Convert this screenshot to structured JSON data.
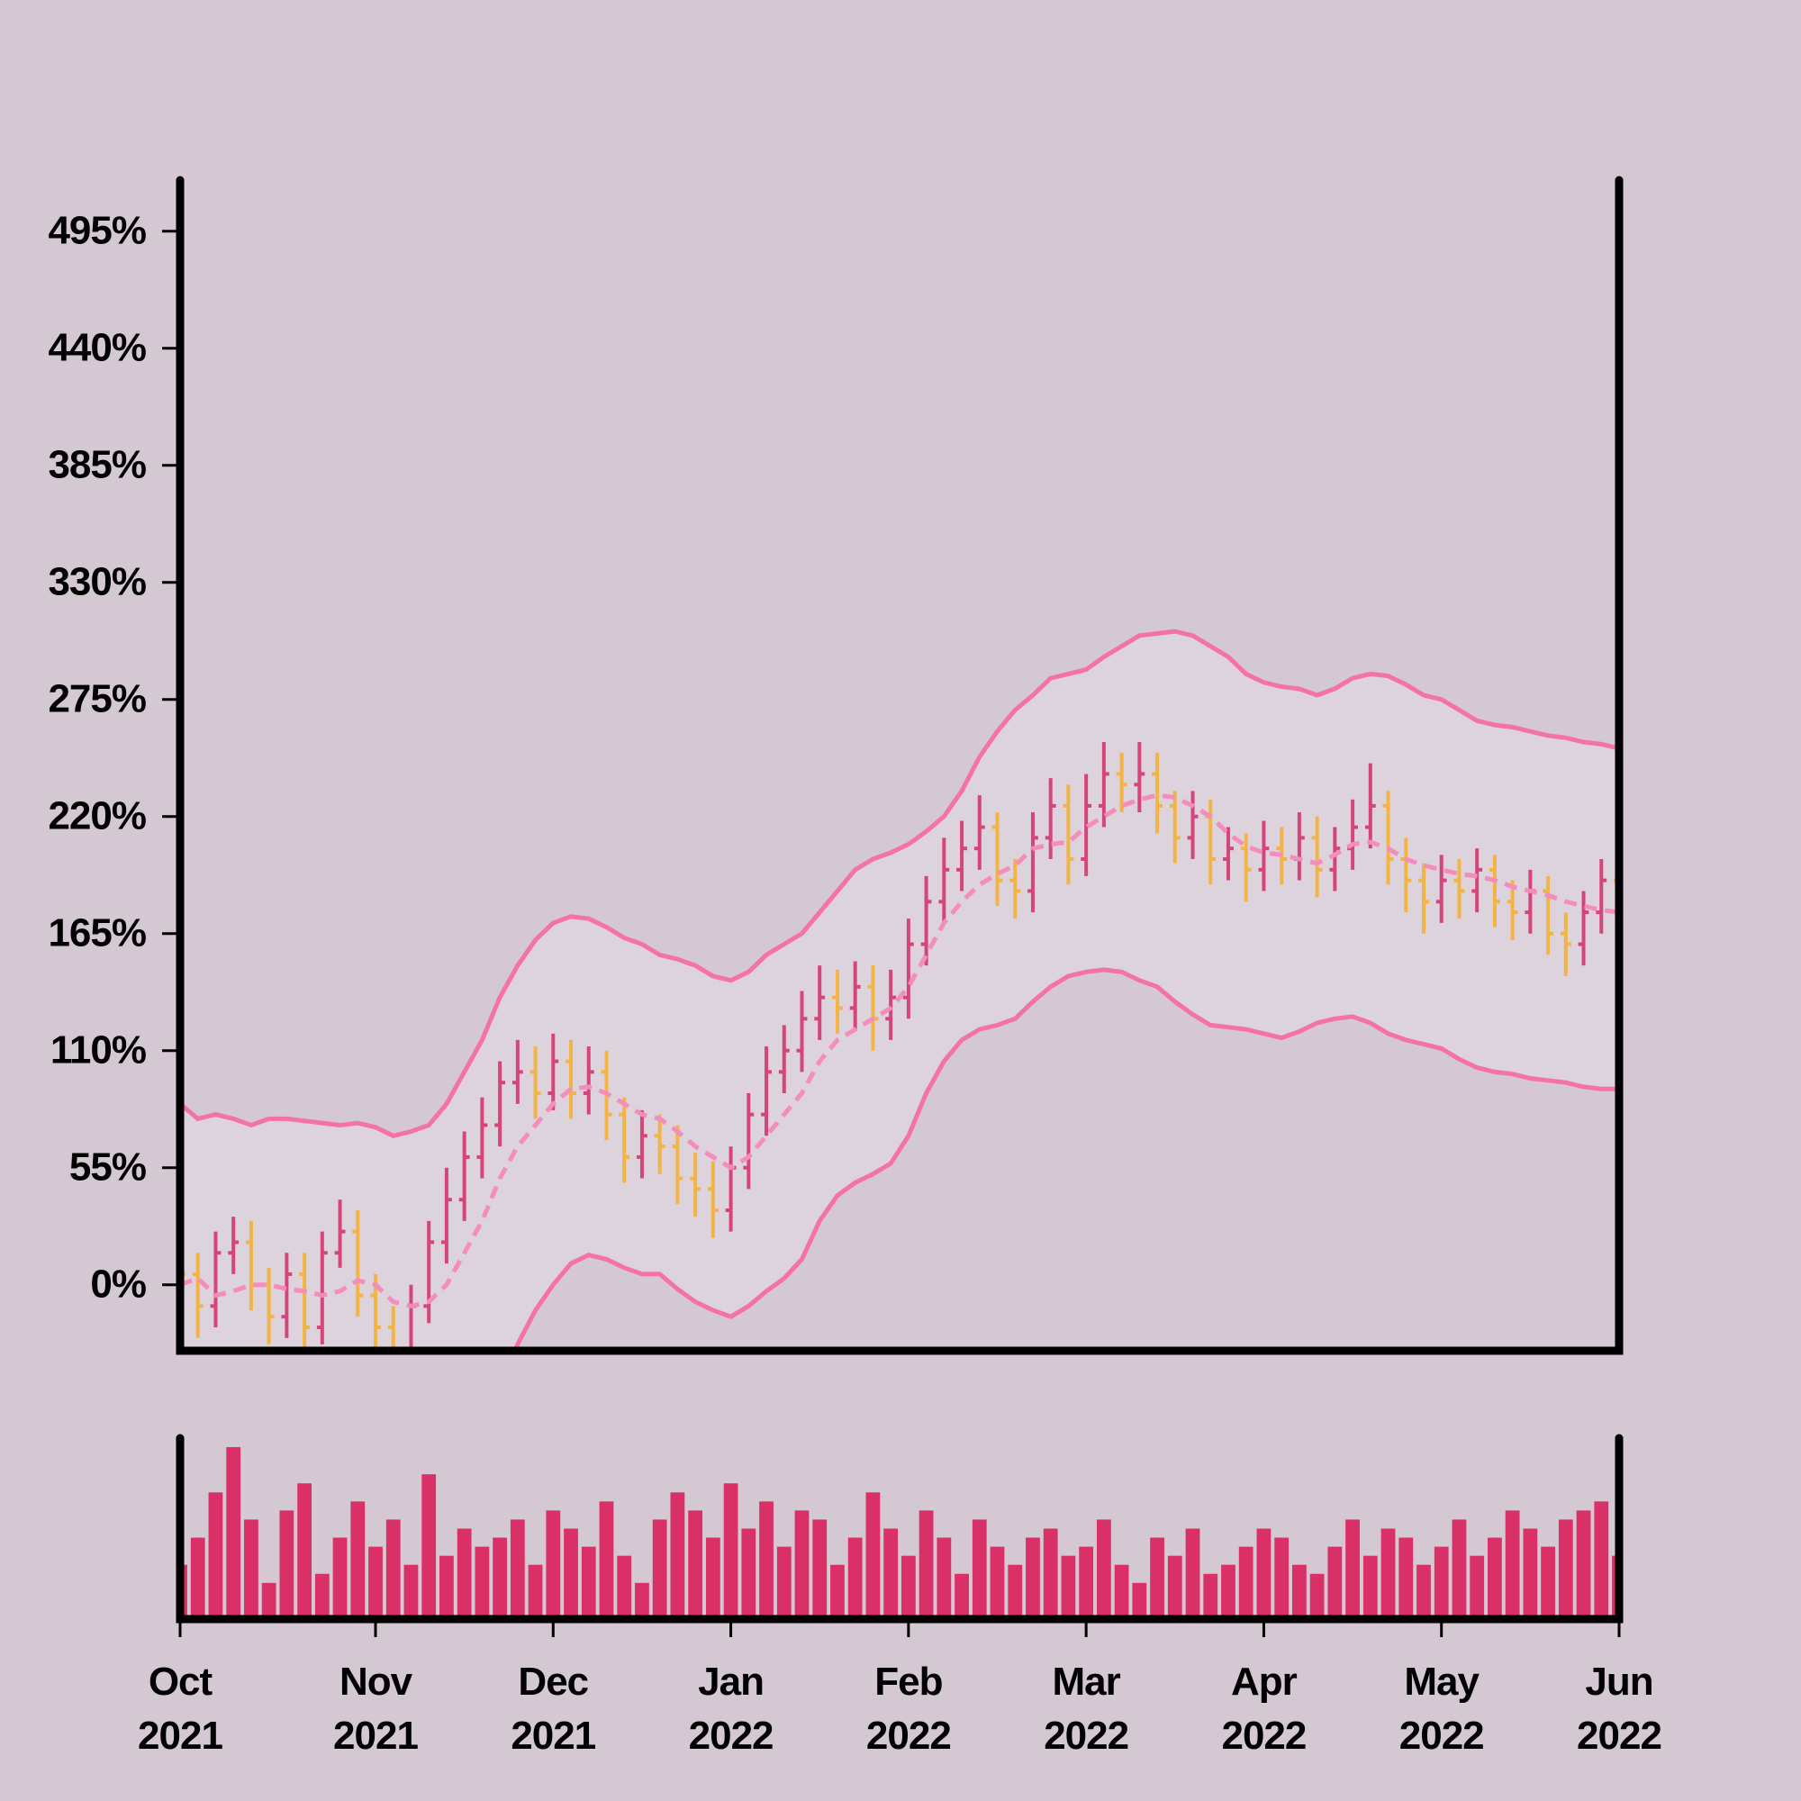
{
  "chart_data": [
    {
      "type": "ohlc",
      "x": [
        "2021-10",
        "2021-10",
        "2021-10",
        "2021-10",
        "2021-10",
        "2021-10",
        "2021-10",
        "2021-10",
        "2021-10",
        "2021-10",
        "2021-10",
        "2021-11",
        "2021-11",
        "2021-11",
        "2021-11",
        "2021-11",
        "2021-11",
        "2021-11",
        "2021-11",
        "2021-11",
        "2021-11",
        "2021-12",
        "2021-12",
        "2021-12",
        "2021-12",
        "2021-12",
        "2021-12",
        "2021-12",
        "2021-12",
        "2021-12",
        "2021-12",
        "2022-01",
        "2022-01",
        "2022-01",
        "2022-01",
        "2022-01",
        "2022-01",
        "2022-01",
        "2022-01",
        "2022-01",
        "2022-01",
        "2022-02",
        "2022-02",
        "2022-02",
        "2022-02",
        "2022-02",
        "2022-02",
        "2022-02",
        "2022-02",
        "2022-02",
        "2022-02",
        "2022-03",
        "2022-03",
        "2022-03",
        "2022-03",
        "2022-03",
        "2022-03",
        "2022-03",
        "2022-03",
        "2022-03",
        "2022-03",
        "2022-04",
        "2022-04",
        "2022-04",
        "2022-04",
        "2022-04",
        "2022-04",
        "2022-04",
        "2022-04",
        "2022-04",
        "2022-04",
        "2022-05",
        "2022-05",
        "2022-05",
        "2022-05",
        "2022-05",
        "2022-05",
        "2022-05",
        "2022-05",
        "2022-05",
        "2022-05",
        "2022-06"
      ],
      "open": [
        15,
        5,
        -10,
        15,
        20,
        0,
        -15,
        5,
        -20,
        15,
        25,
        -5,
        -20,
        -30,
        -10,
        20,
        40,
        60,
        75,
        95,
        100,
        90,
        105,
        90,
        100,
        80,
        60,
        70,
        65,
        50,
        45,
        35,
        55,
        80,
        100,
        110,
        125,
        135,
        130,
        140,
        125,
        135,
        160,
        180,
        195,
        205,
        215,
        190,
        185,
        210,
        225,
        200,
        225,
        240,
        235,
        240,
        225,
        210,
        220,
        200,
        205,
        195,
        205,
        200,
        210,
        195,
        205,
        215,
        225,
        200,
        190,
        180,
        190,
        185,
        195,
        180,
        175,
        185,
        165,
        160,
        175,
        190
      ],
      "high": [
        28,
        15,
        25,
        32,
        30,
        8,
        15,
        15,
        25,
        40,
        35,
        5,
        -10,
        0,
        30,
        55,
        72,
        88,
        105,
        115,
        112,
        118,
        115,
        112,
        110,
        88,
        82,
        80,
        75,
        62,
        58,
        65,
        90,
        112,
        122,
        138,
        150,
        148,
        152,
        150,
        148,
        172,
        192,
        210,
        218,
        230,
        222,
        200,
        222,
        238,
        235,
        240,
        255,
        250,
        255,
        250,
        232,
        232,
        228,
        215,
        212,
        218,
        215,
        222,
        220,
        215,
        228,
        245,
        232,
        210,
        198,
        202,
        200,
        205,
        202,
        190,
        195,
        192,
        175,
        185,
        200,
        198
      ],
      "low": [
        -8,
        -25,
        -20,
        5,
        -12,
        -28,
        -25,
        -32,
        -28,
        8,
        -15,
        -30,
        -40,
        -38,
        -18,
        10,
        30,
        50,
        65,
        85,
        78,
        82,
        78,
        80,
        68,
        48,
        50,
        52,
        38,
        32,
        22,
        25,
        45,
        70,
        90,
        100,
        115,
        118,
        120,
        110,
        115,
        125,
        150,
        170,
        185,
        195,
        178,
        172,
        175,
        200,
        188,
        192,
        215,
        222,
        222,
        212,
        198,
        200,
        188,
        190,
        180,
        185,
        188,
        190,
        182,
        185,
        195,
        205,
        188,
        175,
        165,
        170,
        172,
        175,
        168,
        162,
        165,
        155,
        145,
        150,
        165,
        158
      ],
      "close": [
        5,
        -10,
        15,
        20,
        0,
        -15,
        5,
        -20,
        15,
        25,
        -5,
        -20,
        -30,
        -10,
        20,
        40,
        60,
        75,
        95,
        100,
        90,
        105,
        90,
        100,
        80,
        60,
        70,
        65,
        50,
        45,
        35,
        55,
        80,
        100,
        110,
        125,
        135,
        130,
        140,
        125,
        135,
        160,
        180,
        195,
        205,
        215,
        190,
        185,
        210,
        225,
        200,
        225,
        240,
        235,
        240,
        225,
        210,
        220,
        200,
        205,
        195,
        205,
        200,
        210,
        195,
        205,
        215,
        225,
        200,
        190,
        180,
        190,
        185,
        195,
        180,
        175,
        185,
        165,
        160,
        175,
        190,
        170
      ],
      "upper": [
        85,
        78,
        80,
        78,
        75,
        78,
        78,
        77,
        76,
        75,
        76,
        74,
        70,
        72,
        75,
        85,
        100,
        115,
        135,
        150,
        162,
        170,
        173,
        172,
        168,
        163,
        160,
        155,
        153,
        150,
        145,
        143,
        147,
        155,
        160,
        165,
        175,
        185,
        195,
        200,
        203,
        207,
        213,
        220,
        232,
        248,
        260,
        270,
        277,
        285,
        287,
        289,
        295,
        300,
        305,
        306,
        307,
        305,
        300,
        295,
        287,
        283,
        281,
        280,
        277,
        280,
        285,
        287,
        286,
        282,
        277,
        275,
        270,
        265,
        263,
        262,
        260,
        258,
        257,
        255,
        254,
        252
      ],
      "middle": [
        0,
        3,
        -5,
        -3,
        0,
        0,
        -2,
        -3,
        -5,
        -3,
        2,
        0,
        -8,
        -10,
        -8,
        0,
        15,
        30,
        50,
        65,
        75,
        85,
        92,
        93,
        90,
        85,
        80,
        78,
        72,
        65,
        60,
        55,
        60,
        70,
        80,
        90,
        105,
        115,
        120,
        125,
        130,
        140,
        155,
        170,
        180,
        188,
        193,
        197,
        205,
        207,
        208,
        215,
        220,
        225,
        228,
        230,
        229,
        225,
        220,
        212,
        206,
        203,
        202,
        200,
        198,
        202,
        207,
        208,
        205,
        200,
        197,
        195,
        193,
        192,
        190,
        187,
        185,
        183,
        180,
        178,
        176,
        175
      ],
      "lower": [
        -100,
        -105,
        -108,
        -110,
        -108,
        -106,
        -108,
        -110,
        -112,
        -110,
        -106,
        -108,
        -112,
        -115,
        -113,
        -110,
        -90,
        -70,
        -50,
        -28,
        -12,
        0,
        10,
        14,
        12,
        8,
        5,
        5,
        -2,
        -8,
        -12,
        -15,
        -10,
        -3,
        3,
        12,
        30,
        42,
        48,
        52,
        57,
        70,
        90,
        105,
        115,
        120,
        122,
        125,
        133,
        140,
        145,
        147,
        148,
        147,
        143,
        140,
        133,
        127,
        122,
        121,
        120,
        118,
        116,
        119,
        123,
        125,
        126,
        123,
        118,
        115,
        113,
        111,
        106,
        102,
        100,
        99,
        97,
        96,
        95,
        93,
        92,
        92
      ],
      "up_color": "#d6457a",
      "down_color": "#f3b445",
      "band_color": "#f472a8",
      "middle_color": "#f48cbc",
      "fill_color": "#dcd3dc",
      "ylim": [
        -31,
        519
      ],
      "yticks": [
        {
          "value": 0,
          "label": "0%"
        },
        {
          "value": 55,
          "label": "55%"
        },
        {
          "value": 110,
          "label": "110%"
        },
        {
          "value": 165,
          "label": "165%"
        },
        {
          "value": 220,
          "label": "220%"
        },
        {
          "value": 275,
          "label": "275%"
        },
        {
          "value": 330,
          "label": "330%"
        },
        {
          "value": 385,
          "label": "385%"
        },
        {
          "value": 440,
          "label": "440%"
        },
        {
          "value": 495,
          "label": "495%"
        }
      ]
    },
    {
      "type": "bar",
      "x": [
        "2021-10",
        "2021-10",
        "2021-10",
        "2021-10",
        "2021-10",
        "2021-10",
        "2021-10",
        "2021-10",
        "2021-10",
        "2021-10",
        "2021-10",
        "2021-11",
        "2021-11",
        "2021-11",
        "2021-11",
        "2021-11",
        "2021-11",
        "2021-11",
        "2021-11",
        "2021-11",
        "2021-11",
        "2021-12",
        "2021-12",
        "2021-12",
        "2021-12",
        "2021-12",
        "2021-12",
        "2021-12",
        "2021-12",
        "2021-12",
        "2021-12",
        "2022-01",
        "2022-01",
        "2022-01",
        "2022-01",
        "2022-01",
        "2022-01",
        "2022-01",
        "2022-01",
        "2022-01",
        "2022-01",
        "2022-02",
        "2022-02",
        "2022-02",
        "2022-02",
        "2022-02",
        "2022-02",
        "2022-02",
        "2022-02",
        "2022-02",
        "2022-02",
        "2022-03",
        "2022-03",
        "2022-03",
        "2022-03",
        "2022-03",
        "2022-03",
        "2022-03",
        "2022-03",
        "2022-03",
        "2022-03",
        "2022-04",
        "2022-04",
        "2022-04",
        "2022-04",
        "2022-04",
        "2022-04",
        "2022-04",
        "2022-04",
        "2022-04",
        "2022-04",
        "2022-05",
        "2022-05",
        "2022-05",
        "2022-05",
        "2022-05",
        "2022-05",
        "2022-05",
        "2022-05",
        "2022-05",
        "2022-05",
        "2022-06"
      ],
      "values": [
        30,
        45,
        70,
        95,
        55,
        20,
        60,
        75,
        25,
        45,
        65,
        40,
        55,
        30,
        80,
        35,
        50,
        40,
        45,
        55,
        30,
        60,
        50,
        40,
        65,
        35,
        20,
        55,
        70,
        60,
        45,
        75,
        50,
        65,
        40,
        60,
        55,
        30,
        45,
        70,
        50,
        35,
        60,
        45,
        25,
        55,
        40,
        30,
        45,
        50,
        35,
        40,
        55,
        30,
        20,
        45,
        35,
        50,
        25,
        30,
        40,
        50,
        45,
        30,
        25,
        40,
        55,
        35,
        50,
        45,
        30,
        40,
        55,
        35,
        45,
        60,
        50,
        40,
        55,
        60,
        65,
        35
      ],
      "color": "#d93068",
      "ylim": [
        0,
        100
      ],
      "xticks": [
        {
          "value": "2021-10",
          "label": "Oct 2021"
        },
        {
          "value": "2021-11",
          "label": "Nov 2021"
        },
        {
          "value": "2021-12",
          "label": "Dec 2021"
        },
        {
          "value": "2022-01",
          "label": "Jan 2022"
        },
        {
          "value": "2022-02",
          "label": "Feb 2022"
        },
        {
          "value": "2022-03",
          "label": "Mar 2022"
        },
        {
          "value": "2022-04",
          "label": "Apr 2022"
        },
        {
          "value": "2022-05",
          "label": "May 2022"
        },
        {
          "value": "2022-06",
          "label": "Jun 2022"
        }
      ]
    }
  ]
}
